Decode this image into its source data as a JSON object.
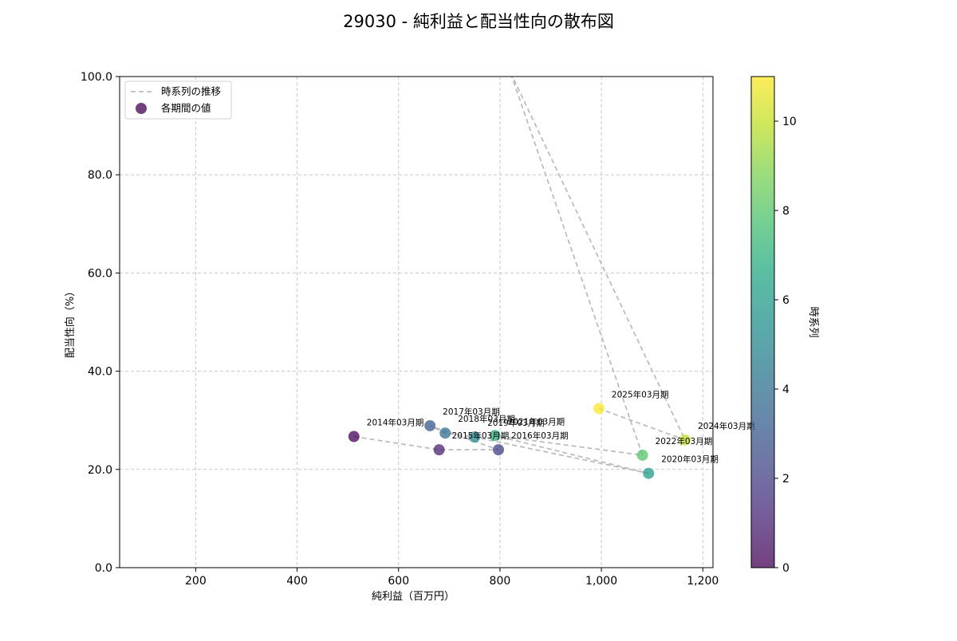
{
  "chart_data": {
    "type": "scatter",
    "title": "29030 - 純利益と配当性向の散布図",
    "xlabel": "純利益（百万円）",
    "ylabel": "配当性向（%）",
    "xlim": [
      50,
      1220
    ],
    "ylim": [
      0,
      100
    ],
    "xticks": [
      200,
      400,
      600,
      800,
      1000,
      1200
    ],
    "xtick_labels": [
      "200",
      "400",
      "600",
      "800",
      "1,000",
      "1,200"
    ],
    "yticks": [
      0,
      20,
      40,
      60,
      80,
      100
    ],
    "ytick_labels": [
      "0.0",
      "20.0",
      "40.0",
      "60.0",
      "80.0",
      "100.0"
    ],
    "grid": true,
    "legend_position": "top-left",
    "legend": [
      {
        "label": "時系列の推移",
        "kind": "line"
      },
      {
        "label": "各期間の値",
        "kind": "marker"
      }
    ],
    "colorbar": {
      "label": "時系列",
      "range": [
        0,
        11
      ],
      "ticks": [
        0,
        2,
        4,
        6,
        8,
        10
      ],
      "colormap": "viridis"
    },
    "points": [
      {
        "label": "2014年03月期",
        "x": 512,
        "y": 26.7,
        "t": 0
      },
      {
        "label": "2015年03月期",
        "x": 680,
        "y": 24.0,
        "t": 1
      },
      {
        "label": "2016年03月期",
        "x": 797,
        "y": 24.0,
        "t": 2
      },
      {
        "label": "2017年03月期",
        "x": 662,
        "y": 28.9,
        "t": 3
      },
      {
        "label": "2018年03月期",
        "x": 692,
        "y": 27.4,
        "t": 4
      },
      {
        "label": "2019年03月期",
        "x": 750,
        "y": 26.6,
        "t": 5
      },
      {
        "label": "2020年03月期",
        "x": 1093,
        "y": 19.2,
        "t": 6
      },
      {
        "label": "2021年03月期",
        "x": 790,
        "y": 26.9,
        "t": 7
      },
      {
        "label": "2022年03月期",
        "x": 1081,
        "y": 22.9,
        "t": 8
      },
      {
        "label": "2023年03月期",
        "x": 820,
        "y": 101.0,
        "t": 9,
        "off_axis": true
      },
      {
        "label": "2024年03月期",
        "x": 1165,
        "y": 26.0,
        "t": 10
      },
      {
        "label": "2025年03月期",
        "x": 995,
        "y": 32.4,
        "t": 11
      }
    ]
  }
}
